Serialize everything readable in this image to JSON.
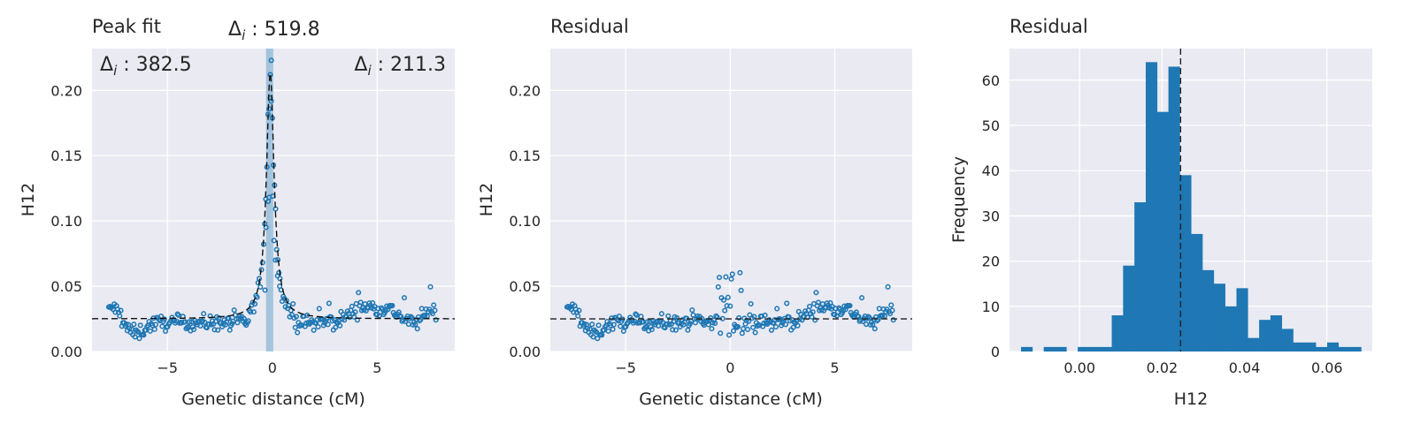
{
  "chart_data": [
    {
      "type": "scatter",
      "title": "Peak fit",
      "xlabel": "Genetic distance (cM)",
      "ylabel": "H12",
      "xlim": [
        -8.6,
        8.7
      ],
      "ylim": [
        0.0,
        0.232
      ],
      "xticks": [
        -5,
        0,
        5
      ],
      "yticks": [
        0.0,
        0.05,
        0.1,
        0.15,
        0.2
      ],
      "ytick_labels": [
        "0.00",
        "0.05",
        "0.10",
        "0.15",
        "0.20"
      ],
      "grid": true,
      "annotations": [
        {
          "prefix": "Δ",
          "sub": "i",
          "text": " : 382.5",
          "position": "top-left"
        },
        {
          "prefix": "Δ",
          "sub": "i",
          "text": " : 519.8",
          "position": "above-center"
        },
        {
          "prefix": "Δ",
          "sub": "i",
          "text": " : 211.3",
          "position": "top-right"
        }
      ],
      "points_summary": "~300 open-circle points; background H12 ≈ 0.01–0.04 with a sharp peak near 0 cM reaching ≈ 0.223 and a secondary bump near 4–5 cM up to ≈ 0.068",
      "peak": {
        "center": -0.1,
        "height": 0.223,
        "baseline": 0.025
      },
      "fit_line": {
        "style": "dashed",
        "color": "#111111"
      },
      "shaded_band": {
        "from": -0.3,
        "to": 0.05
      }
    },
    {
      "type": "scatter",
      "title": "Residual",
      "xlabel": "Genetic distance (cM)",
      "ylabel": "H12",
      "xlim": [
        -8.6,
        8.7
      ],
      "ylim": [
        0.0,
        0.232
      ],
      "xticks": [
        -5,
        0,
        5
      ],
      "yticks": [
        0.0,
        0.05,
        0.1,
        0.15,
        0.2
      ],
      "ytick_labels": [
        "0.00",
        "0.05",
        "0.10",
        "0.15",
        "0.20"
      ],
      "grid": true,
      "hline": 0.025,
      "points_summary": "Residual points after removing the peak; values mostly 0.01–0.04, a few up to ≈ 0.068"
    },
    {
      "type": "bar",
      "title": "Residual",
      "xlabel": "H12",
      "ylabel": "Frequency",
      "xlim": [
        -0.017,
        0.071
      ],
      "ylim": [
        0,
        67
      ],
      "xticks": [
        0.0,
        0.02,
        0.04,
        0.06
      ],
      "xtick_labels": [
        "0.00",
        "0.02",
        "0.04",
        "0.06"
      ],
      "yticks": [
        0,
        10,
        20,
        30,
        40,
        50,
        60
      ],
      "grid": true,
      "vline": 0.0245,
      "bin_start": -0.0142,
      "bin_width": 0.00275,
      "values": [
        1,
        0,
        1,
        1,
        0,
        1,
        1,
        1,
        8,
        19,
        33,
        64,
        53,
        63,
        39,
        26,
        18,
        15,
        10,
        14,
        3,
        7,
        8,
        5,
        2,
        2,
        1,
        2,
        1,
        1
      ]
    }
  ]
}
